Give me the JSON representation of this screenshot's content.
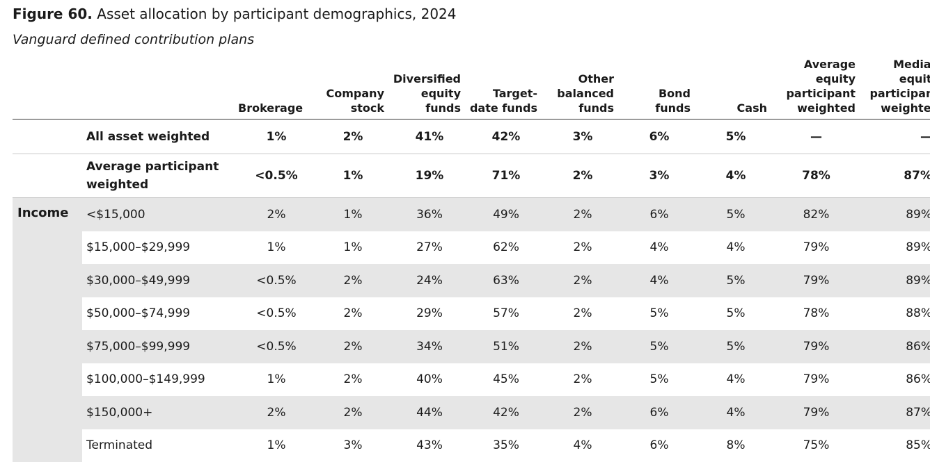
{
  "figure": {
    "label": "Figure 60.",
    "title": "Asset allocation by participant demographics, 2024",
    "subtitle": "Vanguard defined contribution plans"
  },
  "table": {
    "headers": {
      "brokerage": "Brokerage",
      "company_stock": "Company stock",
      "diversified_equity": "Diversified equity funds",
      "target_date": "Target-date funds",
      "other_balanced": "Other balanced funds",
      "bond": "Bond funds",
      "cash": "Cash",
      "avg_equity_pw": "Average equity participant weighted",
      "median_equity_pw": "Median equity participant weighted"
    },
    "summary_rows": [
      {
        "label": "All asset weighted",
        "values": [
          "1%",
          "2%",
          "41%",
          "42%",
          "3%",
          "6%",
          "5%",
          "—",
          "—"
        ]
      },
      {
        "label": "Average participant weighted",
        "values": [
          "<0.5%",
          "1%",
          "19%",
          "71%",
          "2%",
          "3%",
          "4%",
          "78%",
          "87%"
        ]
      }
    ],
    "income_group": {
      "label": "Income",
      "rows": [
        {
          "label": "<$15,000",
          "values": [
            "2%",
            "1%",
            "36%",
            "49%",
            "2%",
            "6%",
            "5%",
            "82%",
            "89%"
          ]
        },
        {
          "label": "$15,000–$29,999",
          "values": [
            "1%",
            "1%",
            "27%",
            "62%",
            "2%",
            "4%",
            "4%",
            "79%",
            "89%"
          ]
        },
        {
          "label": "$30,000–$49,999",
          "values": [
            "<0.5%",
            "2%",
            "24%",
            "63%",
            "2%",
            "4%",
            "5%",
            "79%",
            "89%"
          ]
        },
        {
          "label": "$50,000–$74,999",
          "values": [
            "<0.5%",
            "2%",
            "29%",
            "57%",
            "2%",
            "5%",
            "5%",
            "78%",
            "88%"
          ]
        },
        {
          "label": "$75,000–$99,999",
          "values": [
            "<0.5%",
            "2%",
            "34%",
            "51%",
            "2%",
            "5%",
            "5%",
            "79%",
            "86%"
          ]
        },
        {
          "label": "$100,000–$149,999",
          "values": [
            "1%",
            "2%",
            "40%",
            "45%",
            "2%",
            "5%",
            "4%",
            "79%",
            "86%"
          ]
        },
        {
          "label": "$150,000+",
          "values": [
            "2%",
            "2%",
            "44%",
            "42%",
            "2%",
            "6%",
            "4%",
            "79%",
            "87%"
          ]
        },
        {
          "label": "Terminated",
          "values": [
            "1%",
            "3%",
            "43%",
            "35%",
            "4%",
            "6%",
            "8%",
            "75%",
            "85%"
          ]
        }
      ]
    }
  }
}
